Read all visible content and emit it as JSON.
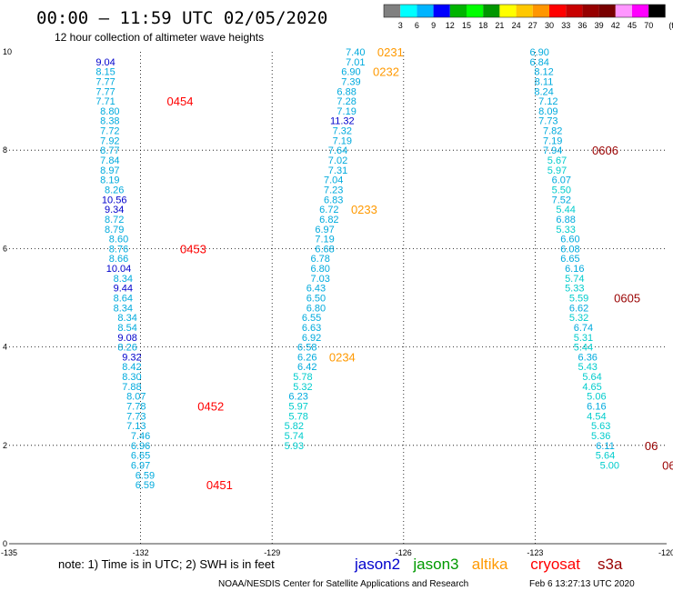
{
  "header": {
    "title": "00:00 – 11:59 UTC 02/05/2020",
    "subtitle": "12 hour collection of altimeter wave heights"
  },
  "colorbar": {
    "ticks": [
      "3",
      "6",
      "9",
      "12",
      "15",
      "18",
      "21",
      "24",
      "27",
      "30",
      "33",
      "36",
      "39",
      "42",
      "45",
      "70"
    ],
    "unit": "(ft)",
    "colors": [
      "#808080",
      "#00ffff",
      "#00b4ff",
      "#0000ff",
      "#00b400",
      "#00ff00",
      "#009600",
      "#ffff00",
      "#ffc800",
      "#ff9600",
      "#ff0000",
      "#c80000",
      "#960000",
      "#780000",
      "#ff96ff",
      "#ff00ff",
      "#000000"
    ]
  },
  "footer": {
    "note": "note: 1) Time is in UTC; 2) SWH is in feet",
    "credit": "NOAA/NESDIS Center for Satellite Applications and Research",
    "timestamp": "Feb  6 13:27:13 UTC 2020"
  },
  "legend": [
    {
      "name": "jason2",
      "color": "#0000cc"
    },
    {
      "name": "jason3",
      "color": "#009900"
    },
    {
      "name": "altika",
      "color": "#ff9900"
    },
    {
      "name": "cryosat",
      "color": "#ff0000"
    },
    {
      "name": "s3a",
      "color": "#990000"
    }
  ],
  "chart_data": {
    "type": "scatter",
    "xlim": [
      -135,
      -120
    ],
    "ylim": [
      0,
      10
    ],
    "x_ticks": [
      "-135",
      "-132",
      "-129",
      "-126",
      "-123",
      "-120"
    ],
    "y_ticks": [
      "0",
      "2",
      "4",
      "6",
      "8",
      "10"
    ],
    "grid": true,
    "series": [
      {
        "name": "cryosat",
        "points": [
          {
            "x": -132.8,
            "y": 9.8,
            "v": "9.04",
            "c": "#0000cc"
          },
          {
            "x": -132.8,
            "y": 9.6,
            "v": "8.15",
            "c": "#00aadd"
          },
          {
            "x": -132.8,
            "y": 9.4,
            "v": "7.77",
            "c": "#00aadd"
          },
          {
            "x": -132.8,
            "y": 9.2,
            "v": "7.77",
            "c": "#00aadd"
          },
          {
            "x": -132.8,
            "y": 9.0,
            "v": "7.71",
            "c": "#00aadd"
          },
          {
            "x": -132.7,
            "y": 8.8,
            "v": "8.80",
            "c": "#00aadd"
          },
          {
            "x": -132.7,
            "y": 8.6,
            "v": "8.38",
            "c": "#00aadd"
          },
          {
            "x": -132.7,
            "y": 8.4,
            "v": "7.72",
            "c": "#00aadd"
          },
          {
            "x": -132.7,
            "y": 8.2,
            "v": "7.92",
            "c": "#00aadd"
          },
          {
            "x": -132.7,
            "y": 8.0,
            "v": "8.77",
            "c": "#00aadd"
          },
          {
            "x": -132.7,
            "y": 7.8,
            "v": "7.84",
            "c": "#00aadd"
          },
          {
            "x": -132.7,
            "y": 7.6,
            "v": "8.97",
            "c": "#00aadd"
          },
          {
            "x": -132.7,
            "y": 7.4,
            "v": "8.19",
            "c": "#00aadd"
          },
          {
            "x": -132.6,
            "y": 7.2,
            "v": "8.26",
            "c": "#00aadd"
          },
          {
            "x": -132.6,
            "y": 7.0,
            "v": "10.56",
            "c": "#0000cc"
          },
          {
            "x": -132.6,
            "y": 6.8,
            "v": "9.34",
            "c": "#0000cc"
          },
          {
            "x": -132.6,
            "y": 6.6,
            "v": "8.72",
            "c": "#00aadd"
          },
          {
            "x": -132.6,
            "y": 6.4,
            "v": "8.79",
            "c": "#00aadd"
          },
          {
            "x": -132.5,
            "y": 6.2,
            "v": "8.60",
            "c": "#00aadd"
          },
          {
            "x": -132.5,
            "y": 6.0,
            "v": "8.76",
            "c": "#00aadd"
          },
          {
            "x": -132.5,
            "y": 5.8,
            "v": "8.66",
            "c": "#00aadd"
          },
          {
            "x": -132.5,
            "y": 5.6,
            "v": "10.04",
            "c": "#0000cc"
          },
          {
            "x": -132.4,
            "y": 5.4,
            "v": "8.34",
            "c": "#00aadd"
          },
          {
            "x": -132.4,
            "y": 5.2,
            "v": "9.44",
            "c": "#0000cc"
          },
          {
            "x": -132.4,
            "y": 5.0,
            "v": "8.64",
            "c": "#00aadd"
          },
          {
            "x": -132.4,
            "y": 4.8,
            "v": "8.34",
            "c": "#00aadd"
          },
          {
            "x": -132.3,
            "y": 4.6,
            "v": "8.34",
            "c": "#00aadd"
          },
          {
            "x": -132.3,
            "y": 4.4,
            "v": "8.54",
            "c": "#00aadd"
          },
          {
            "x": -132.3,
            "y": 4.2,
            "v": "9.08",
            "c": "#0000cc"
          },
          {
            "x": -132.3,
            "y": 4.0,
            "v": "8.26",
            "c": "#00aadd"
          },
          {
            "x": -132.2,
            "y": 3.8,
            "v": "9.32",
            "c": "#0000cc"
          },
          {
            "x": -132.2,
            "y": 3.6,
            "v": "8.42",
            "c": "#00aadd"
          },
          {
            "x": -132.2,
            "y": 3.4,
            "v": "8.30",
            "c": "#00aadd"
          },
          {
            "x": -132.2,
            "y": 3.2,
            "v": "7.88",
            "c": "#00aadd"
          },
          {
            "x": -132.1,
            "y": 3.0,
            "v": "8.07",
            "c": "#00aadd"
          },
          {
            "x": -132.1,
            "y": 2.8,
            "v": "7.78",
            "c": "#00aadd"
          },
          {
            "x": -132.1,
            "y": 2.6,
            "v": "7.73",
            "c": "#00aadd"
          },
          {
            "x": -132.1,
            "y": 2.4,
            "v": "7.13",
            "c": "#00aadd"
          },
          {
            "x": -132.0,
            "y": 2.2,
            "v": "7.46",
            "c": "#00aadd"
          },
          {
            "x": -132.0,
            "y": 2.0,
            "v": "6.96",
            "c": "#00aadd"
          },
          {
            "x": -132.0,
            "y": 1.8,
            "v": "6.65",
            "c": "#00aadd"
          },
          {
            "x": -132.0,
            "y": 1.6,
            "v": "6.97",
            "c": "#00aadd"
          },
          {
            "x": -131.9,
            "y": 1.4,
            "v": "6.59",
            "c": "#00aadd"
          },
          {
            "x": -131.9,
            "y": 1.2,
            "v": "6.59",
            "c": "#00aadd"
          }
        ],
        "time_labels": [
          {
            "x": -131.4,
            "y": 9.0,
            "text": "0454",
            "c": "#ff0000"
          },
          {
            "x": -131.1,
            "y": 6.0,
            "text": "0453",
            "c": "#ff0000"
          },
          {
            "x": -130.7,
            "y": 2.8,
            "text": "0452",
            "c": "#ff0000"
          },
          {
            "x": -130.5,
            "y": 1.2,
            "text": "0451",
            "c": "#ff0000"
          }
        ]
      },
      {
        "name": "altika",
        "points": [
          {
            "x": -127.1,
            "y": 10.0,
            "v": "7.40",
            "c": "#00aadd"
          },
          {
            "x": -127.1,
            "y": 9.8,
            "v": "7.01",
            "c": "#00aadd"
          },
          {
            "x": -127.2,
            "y": 9.6,
            "v": "6.90",
            "c": "#00aadd"
          },
          {
            "x": -127.2,
            "y": 9.4,
            "v": "7.39",
            "c": "#00aadd"
          },
          {
            "x": -127.3,
            "y": 9.2,
            "v": "6.88",
            "c": "#00aadd"
          },
          {
            "x": -127.3,
            "y": 9.0,
            "v": "7.28",
            "c": "#00aadd"
          },
          {
            "x": -127.3,
            "y": 8.8,
            "v": "7.19",
            "c": "#00aadd"
          },
          {
            "x": -127.4,
            "y": 8.6,
            "v": "11.32",
            "c": "#0000cc"
          },
          {
            "x": -127.4,
            "y": 8.4,
            "v": "7.32",
            "c": "#00aadd"
          },
          {
            "x": -127.4,
            "y": 8.2,
            "v": "7.19",
            "c": "#00aadd"
          },
          {
            "x": -127.5,
            "y": 8.0,
            "v": "7.64",
            "c": "#00aadd"
          },
          {
            "x": -127.5,
            "y": 7.8,
            "v": "7.02",
            "c": "#00aadd"
          },
          {
            "x": -127.5,
            "y": 7.6,
            "v": "7.31",
            "c": "#00aadd"
          },
          {
            "x": -127.6,
            "y": 7.4,
            "v": "7.04",
            "c": "#00aadd"
          },
          {
            "x": -127.6,
            "y": 7.2,
            "v": "7.23",
            "c": "#00aadd"
          },
          {
            "x": -127.6,
            "y": 7.0,
            "v": "6.83",
            "c": "#00aadd"
          },
          {
            "x": -127.7,
            "y": 6.8,
            "v": "6.72",
            "c": "#00aadd"
          },
          {
            "x": -127.7,
            "y": 6.6,
            "v": "6.82",
            "c": "#00aadd"
          },
          {
            "x": -127.8,
            "y": 6.4,
            "v": "6.97",
            "c": "#00aadd"
          },
          {
            "x": -127.8,
            "y": 6.2,
            "v": "7.19",
            "c": "#00aadd"
          },
          {
            "x": -127.8,
            "y": 6.0,
            "v": "6.68",
            "c": "#00aadd"
          },
          {
            "x": -127.9,
            "y": 5.8,
            "v": "6.78",
            "c": "#00aadd"
          },
          {
            "x": -127.9,
            "y": 5.6,
            "v": "6.80",
            "c": "#00aadd"
          },
          {
            "x": -127.9,
            "y": 5.4,
            "v": "7.03",
            "c": "#00aadd"
          },
          {
            "x": -128.0,
            "y": 5.2,
            "v": "6.43",
            "c": "#00aadd"
          },
          {
            "x": -128.0,
            "y": 5.0,
            "v": "6.50",
            "c": "#00aadd"
          },
          {
            "x": -128.0,
            "y": 4.8,
            "v": "6.80",
            "c": "#00aadd"
          },
          {
            "x": -128.1,
            "y": 4.6,
            "v": "6.55",
            "c": "#00aadd"
          },
          {
            "x": -128.1,
            "y": 4.4,
            "v": "6.63",
            "c": "#00aadd"
          },
          {
            "x": -128.1,
            "y": 4.2,
            "v": "6.92",
            "c": "#00aadd"
          },
          {
            "x": -128.2,
            "y": 4.0,
            "v": "6.58",
            "c": "#00aadd"
          },
          {
            "x": -128.2,
            "y": 3.8,
            "v": "6.26",
            "c": "#00aadd"
          },
          {
            "x": -128.2,
            "y": 3.6,
            "v": "6.42",
            "c": "#00aadd"
          },
          {
            "x": -128.3,
            "y": 3.4,
            "v": "5.78",
            "c": "#00cccc"
          },
          {
            "x": -128.3,
            "y": 3.2,
            "v": "5.32",
            "c": "#00cccc"
          },
          {
            "x": -128.4,
            "y": 3.0,
            "v": "6.23",
            "c": "#00aadd"
          },
          {
            "x": -128.4,
            "y": 2.8,
            "v": "5.97",
            "c": "#00cccc"
          },
          {
            "x": -128.4,
            "y": 2.6,
            "v": "5.78",
            "c": "#00cccc"
          },
          {
            "x": -128.5,
            "y": 2.4,
            "v": "5.82",
            "c": "#00cccc"
          },
          {
            "x": -128.5,
            "y": 2.2,
            "v": "5.74",
            "c": "#00cccc"
          },
          {
            "x": -128.5,
            "y": 2.0,
            "v": "5.93",
            "c": "#00cccc"
          }
        ],
        "time_labels": [
          {
            "x": -126.6,
            "y": 10.0,
            "text": "0231",
            "c": "#ff9900"
          },
          {
            "x": -126.7,
            "y": 9.6,
            "text": "0232",
            "c": "#ff9900"
          },
          {
            "x": -127.2,
            "y": 6.8,
            "text": "0233",
            "c": "#ff9900"
          },
          {
            "x": -127.7,
            "y": 3.8,
            "text": "0234",
            "c": "#ff9900"
          }
        ]
      },
      {
        "name": "s3a",
        "points": [
          {
            "x": -122.9,
            "y": 10.0,
            "v": "6.90",
            "c": "#00aadd"
          },
          {
            "x": -122.9,
            "y": 9.8,
            "v": "6.84",
            "c": "#00aadd"
          },
          {
            "x": -122.8,
            "y": 9.6,
            "v": "8.12",
            "c": "#00aadd"
          },
          {
            "x": -122.8,
            "y": 9.4,
            "v": "8.11",
            "c": "#00aadd"
          },
          {
            "x": -122.8,
            "y": 9.2,
            "v": "8.24",
            "c": "#00aadd"
          },
          {
            "x": -122.7,
            "y": 9.0,
            "v": "7.12",
            "c": "#00aadd"
          },
          {
            "x": -122.7,
            "y": 8.8,
            "v": "8.09",
            "c": "#00aadd"
          },
          {
            "x": -122.7,
            "y": 8.6,
            "v": "7.73",
            "c": "#00aadd"
          },
          {
            "x": -122.6,
            "y": 8.4,
            "v": "7.82",
            "c": "#00aadd"
          },
          {
            "x": -122.6,
            "y": 8.2,
            "v": "7.19",
            "c": "#00aadd"
          },
          {
            "x": -122.6,
            "y": 8.0,
            "v": "7.94",
            "c": "#00aadd"
          },
          {
            "x": -122.5,
            "y": 7.8,
            "v": "5.67",
            "c": "#00cccc"
          },
          {
            "x": -122.5,
            "y": 7.6,
            "v": "5.97",
            "c": "#00cccc"
          },
          {
            "x": -122.4,
            "y": 7.4,
            "v": "6.07",
            "c": "#00aadd"
          },
          {
            "x": -122.4,
            "y": 7.2,
            "v": "5.50",
            "c": "#00cccc"
          },
          {
            "x": -122.4,
            "y": 7.0,
            "v": "7.52",
            "c": "#00aadd"
          },
          {
            "x": -122.3,
            "y": 6.8,
            "v": "5.44",
            "c": "#00cccc"
          },
          {
            "x": -122.3,
            "y": 6.6,
            "v": "6.88",
            "c": "#00aadd"
          },
          {
            "x": -122.3,
            "y": 6.4,
            "v": "5.33",
            "c": "#00cccc"
          },
          {
            "x": -122.2,
            "y": 6.2,
            "v": "6.60",
            "c": "#00aadd"
          },
          {
            "x": -122.2,
            "y": 6.0,
            "v": "6.08",
            "c": "#00aadd"
          },
          {
            "x": -122.2,
            "y": 5.8,
            "v": "6.65",
            "c": "#00aadd"
          },
          {
            "x": -122.1,
            "y": 5.6,
            "v": "6.16",
            "c": "#00aadd"
          },
          {
            "x": -122.1,
            "y": 5.4,
            "v": "5.74",
            "c": "#00cccc"
          },
          {
            "x": -122.1,
            "y": 5.2,
            "v": "5.33",
            "c": "#00cccc"
          },
          {
            "x": -122.0,
            "y": 5.0,
            "v": "5.59",
            "c": "#00cccc"
          },
          {
            "x": -122.0,
            "y": 4.8,
            "v": "6.62",
            "c": "#00aadd"
          },
          {
            "x": -122.0,
            "y": 4.6,
            "v": "5.32",
            "c": "#00cccc"
          },
          {
            "x": -121.9,
            "y": 4.4,
            "v": "6.74",
            "c": "#00aadd"
          },
          {
            "x": -121.9,
            "y": 4.2,
            "v": "5.31",
            "c": "#00cccc"
          },
          {
            "x": -121.9,
            "y": 4.0,
            "v": "5.44",
            "c": "#00cccc"
          },
          {
            "x": -121.8,
            "y": 3.8,
            "v": "6.36",
            "c": "#00aadd"
          },
          {
            "x": -121.8,
            "y": 3.6,
            "v": "5.43",
            "c": "#00cccc"
          },
          {
            "x": -121.7,
            "y": 3.4,
            "v": "5.64",
            "c": "#00cccc"
          },
          {
            "x": -121.7,
            "y": 3.2,
            "v": "4.65",
            "c": "#00cccc"
          },
          {
            "x": -121.6,
            "y": 3.0,
            "v": "5.06",
            "c": "#00cccc"
          },
          {
            "x": -121.6,
            "y": 2.8,
            "v": "6.16",
            "c": "#00aadd"
          },
          {
            "x": -121.6,
            "y": 2.6,
            "v": "4.54",
            "c": "#00cccc"
          },
          {
            "x": -121.5,
            "y": 2.4,
            "v": "5.63",
            "c": "#00cccc"
          },
          {
            "x": -121.5,
            "y": 2.2,
            "v": "5.36",
            "c": "#00cccc"
          },
          {
            "x": -121.4,
            "y": 2.0,
            "v": "6.11",
            "c": "#00aadd"
          },
          {
            "x": -121.4,
            "y": 1.8,
            "v": "5.64",
            "c": "#00cccc"
          },
          {
            "x": -121.3,
            "y": 1.6,
            "v": "5.00",
            "c": "#00cccc"
          }
        ],
        "time_labels": [
          {
            "x": -121.7,
            "y": 8.0,
            "text": "0606",
            "c": "#990000"
          },
          {
            "x": -121.2,
            "y": 5.0,
            "text": "0605",
            "c": "#990000"
          },
          {
            "x": -120.5,
            "y": 2.0,
            "text": "06",
            "c": "#990000"
          },
          {
            "x": -120.1,
            "y": 1.6,
            "text": "06",
            "c": "#990000"
          }
        ]
      }
    ]
  }
}
